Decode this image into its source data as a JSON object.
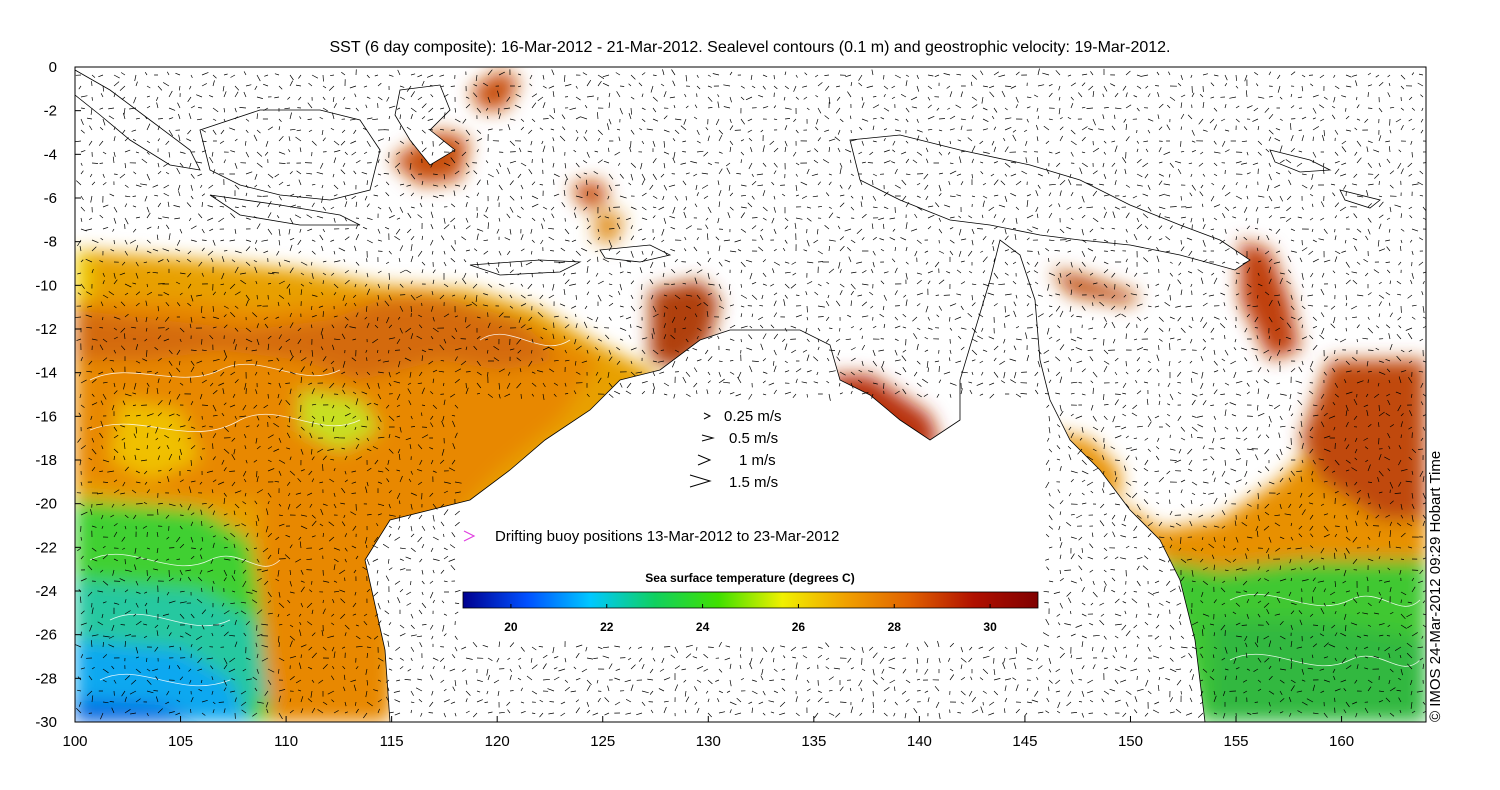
{
  "title": "SST (6 day composite): 16-Mar-2012 - 21-Mar-2012. Sealevel contours (0.1 m) and geostrophic velocity: 19-Mar-2012.",
  "credit": "© IMOS 24-Mar-2012 09:29 Hobart Time",
  "map": {
    "lon_range": [
      100,
      164
    ],
    "lat_range": [
      -30,
      0
    ],
    "x_ticks": [
      100,
      105,
      110,
      115,
      120,
      125,
      130,
      135,
      140,
      145,
      150,
      155,
      160
    ],
    "y_ticks": [
      0,
      -2,
      -4,
      -6,
      -8,
      -10,
      -12,
      -14,
      -16,
      -18,
      -20,
      -22,
      -24,
      -26,
      -28,
      -30
    ],
    "land_color": "#ffffff",
    "vector_color": "#000000",
    "contour_color": "#ffffff"
  },
  "velocity_legend": [
    {
      "speed": 0.25,
      "label": "0.25 m/s"
    },
    {
      "speed": 0.5,
      "label": "0.5 m/s"
    },
    {
      "speed": 1,
      "label": "1 m/s"
    },
    {
      "speed": 1.5,
      "label": "1.5 m/s"
    }
  ],
  "buoy_legend": {
    "label": "Drifting buoy positions 13-Mar-2012 to 23-Mar-2012",
    "color": "#e040e0"
  },
  "colorbar": {
    "label": "Sea surface temperature (degrees C)",
    "range": [
      19,
      31
    ],
    "ticks": [
      20,
      22,
      24,
      26,
      28,
      30
    ],
    "colors": [
      "#00008f",
      "#0050ff",
      "#00c8ff",
      "#10d060",
      "#40e000",
      "#f0f000",
      "#f0a000",
      "#e06000",
      "#b01000",
      "#800000"
    ]
  }
}
